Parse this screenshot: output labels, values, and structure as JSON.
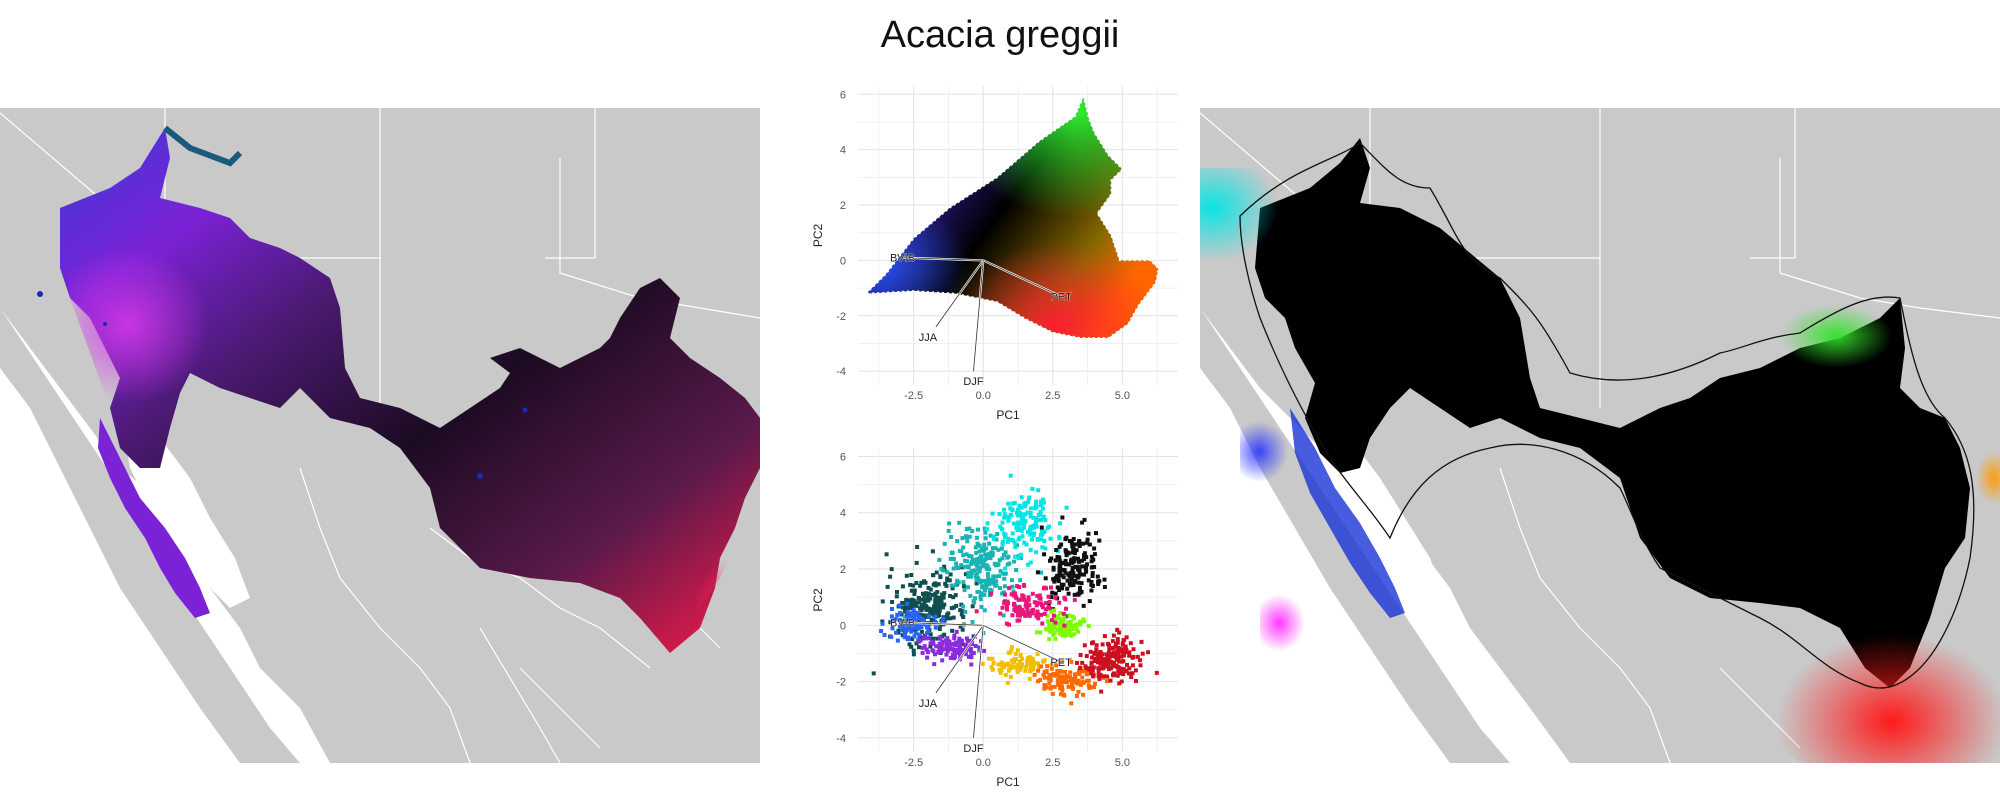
{
  "title": "Acacia greggii",
  "colors": {
    "land": "#c9c9c9",
    "border": "#ffffff",
    "water": "#ffffff",
    "left_range": [
      "#8a1fd9",
      "#4b1a7a",
      "#1a0a25",
      "#e91e63"
    ],
    "right_range": [
      "#00e5d4",
      "#000000",
      "#ff1f1f",
      "#22c02a"
    ]
  },
  "chart_data": [
    {
      "type": "scatter",
      "xlabel": "PC1",
      "ylabel": "PC2",
      "x_ticks": [
        "-2.5",
        "0.0",
        "2.5",
        "5.0"
      ],
      "y_ticks": [
        "-4",
        "-2",
        "0",
        "2",
        "4",
        "6"
      ],
      "xlim": [
        -4.5,
        7
      ],
      "ylim": [
        -4.5,
        6.3
      ],
      "grid": true,
      "style": "hull",
      "hull": [
        [
          -4.2,
          -1.2
        ],
        [
          -3.5,
          -0.5
        ],
        [
          -2.5,
          0.8
        ],
        [
          -1.2,
          1.9
        ],
        [
          0.5,
          3.0
        ],
        [
          2.0,
          4.3
        ],
        [
          3.3,
          5.2
        ],
        [
          3.6,
          5.9
        ],
        [
          3.8,
          5.1
        ],
        [
          4.0,
          4.6
        ],
        [
          4.5,
          3.8
        ],
        [
          5.0,
          3.3
        ],
        [
          4.6,
          2.9
        ],
        [
          4.6,
          2.4
        ],
        [
          4.1,
          1.7
        ],
        [
          4.6,
          0.9
        ],
        [
          4.9,
          0.0
        ],
        [
          6.0,
          0.0
        ],
        [
          6.3,
          -0.3
        ],
        [
          6.2,
          -0.8
        ],
        [
          5.6,
          -1.6
        ],
        [
          5.2,
          -2.3
        ],
        [
          4.5,
          -2.8
        ],
        [
          3.5,
          -2.8
        ],
        [
          2.5,
          -2.6
        ],
        [
          1.5,
          -2.1
        ],
        [
          0.5,
          -1.5
        ],
        [
          -1.0,
          -1.2
        ],
        [
          -2.5,
          -1.1
        ],
        [
          -4.2,
          -1.2
        ]
      ],
      "vectors": [
        {
          "label": "BVIB",
          "x": -2.9,
          "y": 0.1
        },
        {
          "label": "PET",
          "x": 2.8,
          "y": -1.3
        },
        {
          "label": "JJA",
          "x": -1.7,
          "y": -2.4
        },
        {
          "label": "DJF",
          "x": -0.35,
          "y": -4.0
        }
      ]
    },
    {
      "type": "scatter",
      "xlabel": "PC1",
      "ylabel": "PC2",
      "x_ticks": [
        "-2.5",
        "0.0",
        "2.5",
        "5.0"
      ],
      "y_ticks": [
        "-4",
        "-2",
        "0",
        "2",
        "4",
        "6"
      ],
      "xlim": [
        -4.5,
        7
      ],
      "ylim": [
        -4.5,
        6.3
      ],
      "grid": true,
      "style": "points",
      "point_groups": [
        {
          "color": "#0f4f4f",
          "cx": -2.0,
          "cy": 0.6,
          "sx": 1.3,
          "sy": 1.2,
          "n": 260
        },
        {
          "color": "#19b3b3",
          "cx": 0.0,
          "cy": 2.0,
          "sx": 1.2,
          "sy": 1.3,
          "n": 220
        },
        {
          "color": "#00e5e5",
          "cx": 1.5,
          "cy": 3.6,
          "sx": 1.0,
          "sy": 1.1,
          "n": 150
        },
        {
          "color": "#2a62ff",
          "cx": -2.6,
          "cy": 0.1,
          "sx": 0.8,
          "sy": 0.5,
          "n": 90
        },
        {
          "color": "#8a2be2",
          "cx": -1.2,
          "cy": -0.8,
          "sx": 0.9,
          "sy": 0.4,
          "n": 120
        },
        {
          "color": "#111111",
          "cx": 3.2,
          "cy": 2.0,
          "sx": 1.0,
          "sy": 1.1,
          "n": 170
        },
        {
          "color": "#7cfc00",
          "cx": 2.9,
          "cy": 0.0,
          "sx": 0.6,
          "sy": 0.4,
          "n": 90
        },
        {
          "color": "#f0c000",
          "cx": 1.2,
          "cy": -1.4,
          "sx": 0.9,
          "sy": 0.4,
          "n": 90
        },
        {
          "color": "#ff6a00",
          "cx": 3.0,
          "cy": -1.9,
          "sx": 0.9,
          "sy": 0.5,
          "n": 120
        },
        {
          "color": "#e8177c",
          "cx": 1.6,
          "cy": 0.7,
          "sx": 1.3,
          "sy": 0.6,
          "n": 110
        },
        {
          "color": "#cc1020",
          "cx": 4.7,
          "cy": -1.2,
          "sx": 1.0,
          "sy": 0.7,
          "n": 180
        }
      ],
      "vectors": [
        {
          "label": "BVIB",
          "x": -2.9,
          "y": 0.1
        },
        {
          "label": "PET",
          "x": 2.8,
          "y": -1.3
        },
        {
          "label": "JJA",
          "x": -1.7,
          "y": -2.4
        },
        {
          "label": "DJF",
          "x": -0.35,
          "y": -4.0
        }
      ]
    }
  ]
}
